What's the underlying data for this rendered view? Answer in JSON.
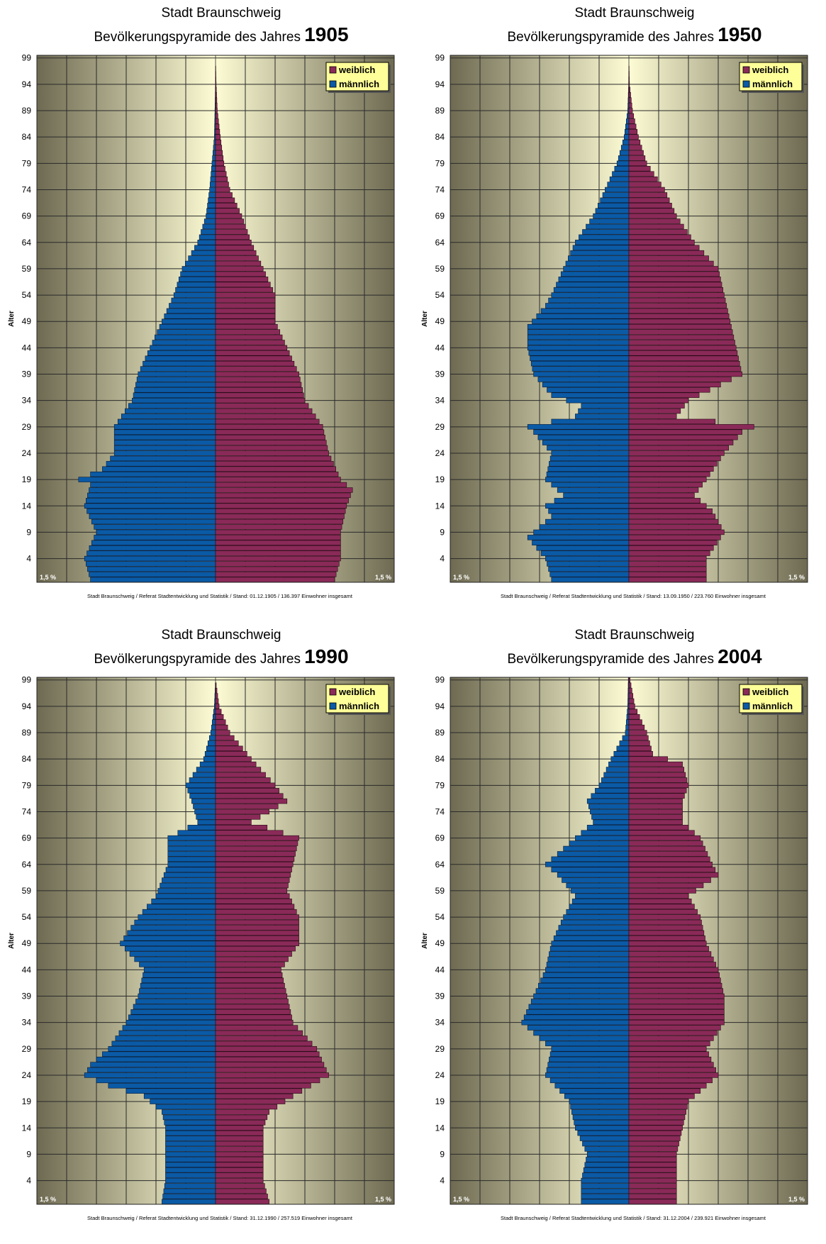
{
  "chart_data": [
    {
      "type": "bar",
      "title": "Stadt Braunschweig",
      "subtitle_prefix": "Bevölkerungspyramide des Jahres",
      "year": "1905",
      "ylabel": "Alter",
      "y_ticks": [
        "99",
        "94",
        "89",
        "84",
        "79",
        "74",
        "69",
        "64",
        "59",
        "54",
        "49",
        "44",
        "39",
        "34",
        "29",
        "24",
        "19",
        "14",
        "9",
        "4"
      ],
      "age_range": [
        0,
        99
      ],
      "xlim_percent": [
        -1.5,
        1.5
      ],
      "x_corner_labels": [
        "1,5 %",
        "1,5 %"
      ],
      "legend": [
        "weiblich",
        "männlich"
      ],
      "grid": true,
      "legend_position": "top-right",
      "footer": "Stadt Braunschweig / Referat Stadtentwicklung und Statistik / Stand: 01.12.1905 / 136.397 Einwohner insgesamt",
      "male_percent_by_age_keypoints": [
        [
          0,
          1.05
        ],
        [
          4,
          1.1
        ],
        [
          9,
          1.0
        ],
        [
          14,
          1.1
        ],
        [
          18,
          1.05
        ],
        [
          19,
          1.15
        ],
        [
          21,
          0.95
        ],
        [
          24,
          0.85
        ],
        [
          29,
          0.85
        ],
        [
          34,
          0.7
        ],
        [
          39,
          0.65
        ],
        [
          44,
          0.55
        ],
        [
          49,
          0.45
        ],
        [
          54,
          0.35
        ],
        [
          59,
          0.28
        ],
        [
          64,
          0.15
        ],
        [
          69,
          0.08
        ],
        [
          74,
          0.05
        ],
        [
          79,
          0.03
        ],
        [
          84,
          0.01
        ],
        [
          89,
          0.005
        ],
        [
          94,
          0.001
        ],
        [
          99,
          0
        ]
      ],
      "female_percent_by_age_keypoints": [
        [
          0,
          1.0
        ],
        [
          4,
          1.05
        ],
        [
          9,
          1.05
        ],
        [
          14,
          1.1
        ],
        [
          17,
          1.15
        ],
        [
          19,
          1.05
        ],
        [
          24,
          0.95
        ],
        [
          29,
          0.9
        ],
        [
          34,
          0.75
        ],
        [
          39,
          0.7
        ],
        [
          44,
          0.6
        ],
        [
          49,
          0.5
        ],
        [
          54,
          0.5
        ],
        [
          59,
          0.4
        ],
        [
          64,
          0.3
        ],
        [
          69,
          0.22
        ],
        [
          74,
          0.12
        ],
        [
          79,
          0.07
        ],
        [
          84,
          0.04
        ],
        [
          89,
          0.015
        ],
        [
          94,
          0.005
        ],
        [
          99,
          0
        ]
      ]
    },
    {
      "type": "bar",
      "title": "Stadt Braunschweig",
      "subtitle_prefix": "Bevölkerungspyramide des Jahres",
      "year": "1950",
      "ylabel": "Alter",
      "y_ticks": [
        "99",
        "94",
        "89",
        "84",
        "79",
        "74",
        "69",
        "64",
        "59",
        "54",
        "49",
        "44",
        "39",
        "34",
        "29",
        "24",
        "19",
        "14",
        "9",
        "4"
      ],
      "age_range": [
        0,
        99
      ],
      "xlim_percent": [
        -1.5,
        1.5
      ],
      "x_corner_labels": [
        "1,5 %",
        "1,5 %"
      ],
      "legend": [
        "weiblich",
        "männlich"
      ],
      "grid": true,
      "legend_position": "top-right",
      "footer": "Stadt Braunschweig / Referat Stadtentwicklung und Statistik / Stand: 13.09.1950 / 223.760 Einwohner insgesamt",
      "male_percent_by_age_keypoints": [
        [
          0,
          0.65
        ],
        [
          4,
          0.7
        ],
        [
          8,
          0.85
        ],
        [
          12,
          0.65
        ],
        [
          14,
          0.7
        ],
        [
          16,
          0.55
        ],
        [
          19,
          0.7
        ],
        [
          24,
          0.65
        ],
        [
          28,
          0.8
        ],
        [
          29,
          0.85
        ],
        [
          31,
          0.45
        ],
        [
          33,
          0.4
        ],
        [
          35,
          0.65
        ],
        [
          39,
          0.8
        ],
        [
          44,
          0.85
        ],
        [
          48,
          0.85
        ],
        [
          52,
          0.7
        ],
        [
          54,
          0.65
        ],
        [
          59,
          0.55
        ],
        [
          64,
          0.45
        ],
        [
          69,
          0.3
        ],
        [
          74,
          0.2
        ],
        [
          79,
          0.1
        ],
        [
          84,
          0.04
        ],
        [
          89,
          0.01
        ],
        [
          94,
          0.002
        ],
        [
          99,
          0
        ]
      ],
      "female_percent_by_age_keypoints": [
        [
          0,
          0.65
        ],
        [
          4,
          0.65
        ],
        [
          9,
          0.8
        ],
        [
          13,
          0.7
        ],
        [
          16,
          0.55
        ],
        [
          19,
          0.65
        ],
        [
          24,
          0.8
        ],
        [
          28,
          0.95
        ],
        [
          29,
          1.05
        ],
        [
          31,
          0.4
        ],
        [
          34,
          0.5
        ],
        [
          39,
          0.95
        ],
        [
          44,
          0.9
        ],
        [
          49,
          0.85
        ],
        [
          54,
          0.8
        ],
        [
          59,
          0.75
        ],
        [
          64,
          0.55
        ],
        [
          69,
          0.4
        ],
        [
          74,
          0.3
        ],
        [
          79,
          0.15
        ],
        [
          84,
          0.08
        ],
        [
          89,
          0.03
        ],
        [
          94,
          0.005
        ],
        [
          99,
          0
        ]
      ]
    },
    {
      "type": "bar",
      "title": "Stadt Braunschweig",
      "subtitle_prefix": "Bevölkerungspyramide des Jahres",
      "year": "1990",
      "ylabel": "Alter",
      "y_ticks": [
        "99",
        "94",
        "89",
        "84",
        "79",
        "74",
        "69",
        "64",
        "59",
        "54",
        "49",
        "44",
        "39",
        "34",
        "29",
        "24",
        "19",
        "14",
        "9",
        "4"
      ],
      "age_range": [
        0,
        99
      ],
      "xlim_percent": [
        -1.5,
        1.5
      ],
      "x_corner_labels": [
        "1,5 %",
        "1,5 %"
      ],
      "legend": [
        "weiblich",
        "männlich"
      ],
      "grid": true,
      "legend_position": "top-right",
      "footer": "Stadt Braunschweig / Referat Stadtentwicklung und Statistik / Stand: 31.12.1990 / 257.519 Einwohner insgesamt",
      "male_percent_by_age_keypoints": [
        [
          0,
          0.45
        ],
        [
          4,
          0.42
        ],
        [
          9,
          0.42
        ],
        [
          14,
          0.42
        ],
        [
          17,
          0.45
        ],
        [
          20,
          0.6
        ],
        [
          22,
          0.9
        ],
        [
          24,
          1.1
        ],
        [
          26,
          1.05
        ],
        [
          29,
          0.9
        ],
        [
          34,
          0.75
        ],
        [
          39,
          0.65
        ],
        [
          44,
          0.6
        ],
        [
          49,
          0.8
        ],
        [
          54,
          0.65
        ],
        [
          58,
          0.5
        ],
        [
          64,
          0.4
        ],
        [
          69,
          0.4
        ],
        [
          72,
          0.15
        ],
        [
          76,
          0.2
        ],
        [
          79,
          0.25
        ],
        [
          84,
          0.1
        ],
        [
          89,
          0.04
        ],
        [
          94,
          0.01
        ],
        [
          99,
          0
        ]
      ],
      "female_percent_by_age_keypoints": [
        [
          0,
          0.45
        ],
        [
          4,
          0.4
        ],
        [
          9,
          0.4
        ],
        [
          14,
          0.4
        ],
        [
          17,
          0.45
        ],
        [
          20,
          0.65
        ],
        [
          24,
          0.95
        ],
        [
          29,
          0.85
        ],
        [
          34,
          0.65
        ],
        [
          39,
          0.6
        ],
        [
          44,
          0.55
        ],
        [
          49,
          0.7
        ],
        [
          54,
          0.7
        ],
        [
          59,
          0.6
        ],
        [
          64,
          0.65
        ],
        [
          69,
          0.7
        ],
        [
          72,
          0.3
        ],
        [
          76,
          0.6
        ],
        [
          79,
          0.5
        ],
        [
          84,
          0.3
        ],
        [
          89,
          0.12
        ],
        [
          94,
          0.03
        ],
        [
          99,
          0
        ]
      ]
    },
    {
      "type": "bar",
      "title": "Stadt Braunschweig",
      "subtitle_prefix": "Bevölkerungspyramide des Jahres",
      "year": "2004",
      "ylabel": "Alter",
      "y_ticks": [
        "99",
        "94",
        "89",
        "84",
        "79",
        "74",
        "69",
        "64",
        "59",
        "54",
        "49",
        "44",
        "39",
        "34",
        "29",
        "24",
        "19",
        "14",
        "9",
        "4"
      ],
      "age_range": [
        0,
        99
      ],
      "xlim_percent": [
        -1.5,
        1.5
      ],
      "x_corner_labels": [
        "1,5 %",
        "1,5 %"
      ],
      "legend": [
        "weiblich",
        "männlich"
      ],
      "grid": true,
      "legend_position": "top-right",
      "footer": "Stadt Braunschweig / Referat Stadtentwicklung und Statistik / Stand: 31.12.2004 / 239.921 Einwohner insgesamt",
      "male_percent_by_age_keypoints": [
        [
          0,
          0.4
        ],
        [
          4,
          0.4
        ],
        [
          9,
          0.35
        ],
        [
          14,
          0.45
        ],
        [
          19,
          0.5
        ],
        [
          24,
          0.7
        ],
        [
          29,
          0.65
        ],
        [
          34,
          0.9
        ],
        [
          39,
          0.8
        ],
        [
          44,
          0.7
        ],
        [
          49,
          0.65
        ],
        [
          54,
          0.55
        ],
        [
          58,
          0.45
        ],
        [
          62,
          0.6
        ],
        [
          64,
          0.7
        ],
        [
          69,
          0.45
        ],
        [
          72,
          0.3
        ],
        [
          76,
          0.35
        ],
        [
          79,
          0.25
        ],
        [
          84,
          0.15
        ],
        [
          89,
          0.03
        ],
        [
          94,
          0.01
        ],
        [
          99,
          0.005
        ]
      ],
      "female_percent_by_age_keypoints": [
        [
          0,
          0.4
        ],
        [
          4,
          0.4
        ],
        [
          9,
          0.4
        ],
        [
          14,
          0.45
        ],
        [
          19,
          0.5
        ],
        [
          24,
          0.75
        ],
        [
          29,
          0.65
        ],
        [
          34,
          0.8
        ],
        [
          39,
          0.8
        ],
        [
          44,
          0.75
        ],
        [
          49,
          0.65
        ],
        [
          54,
          0.6
        ],
        [
          58,
          0.5
        ],
        [
          62,
          0.75
        ],
        [
          64,
          0.7
        ],
        [
          69,
          0.6
        ],
        [
          72,
          0.45
        ],
        [
          76,
          0.45
        ],
        [
          79,
          0.5
        ],
        [
          83,
          0.45
        ],
        [
          85,
          0.2
        ],
        [
          89,
          0.15
        ],
        [
          94,
          0.05
        ],
        [
          99,
          0.01
        ]
      ]
    }
  ]
}
